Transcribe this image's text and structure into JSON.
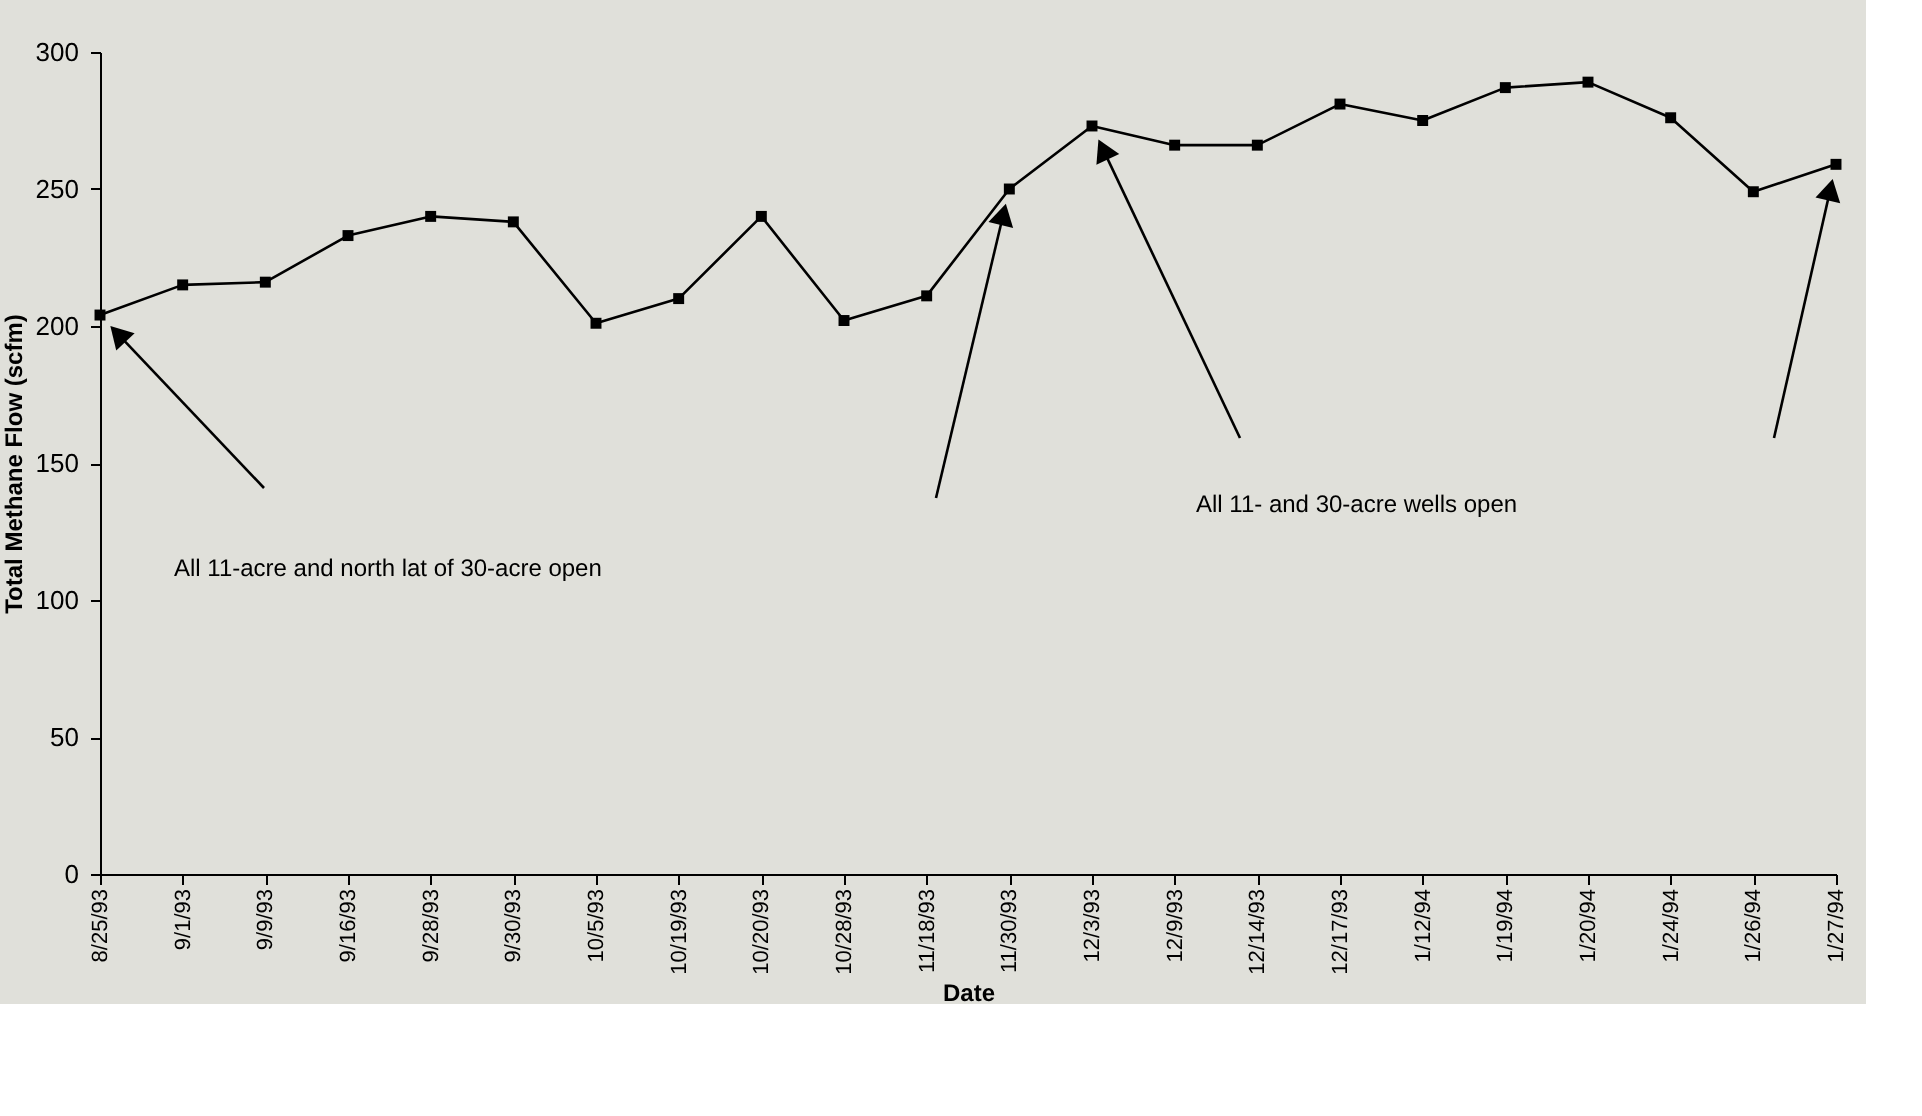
{
  "chart_data": {
    "type": "line",
    "xlabel": "Date",
    "ylabel": "Total Methane Flow (scfm)",
    "categories": [
      "8/25/93",
      "9/1/93",
      "9/9/93",
      "9/16/93",
      "9/28/93",
      "9/30/93",
      "10/5/93",
      "10/19/93",
      "10/20/93",
      "10/28/93",
      "11/18/93",
      "11/30/93",
      "12/3/93",
      "12/9/93",
      "12/14/93",
      "12/17/93",
      "1/12/94",
      "1/19/94",
      "1/20/94",
      "1/24/94",
      "1/26/94",
      "1/27/94"
    ],
    "series": [
      {
        "color": "#000000",
        "values": [
          204,
          215,
          216,
          233,
          240,
          238,
          201,
          210,
          240,
          202,
          211,
          250,
          273,
          266,
          266,
          281,
          275,
          287,
          289,
          276,
          249,
          259
        ]
      }
    ],
    "ylim": [
      0,
      300
    ],
    "yticks": [
      0,
      50,
      100,
      150,
      200,
      250,
      300
    ],
    "marker": "square",
    "line_style": "solid",
    "annotations": [
      "All 11-acre and north lat of 30-acre open",
      "All 11- and 30-acre wells open"
    ]
  }
}
